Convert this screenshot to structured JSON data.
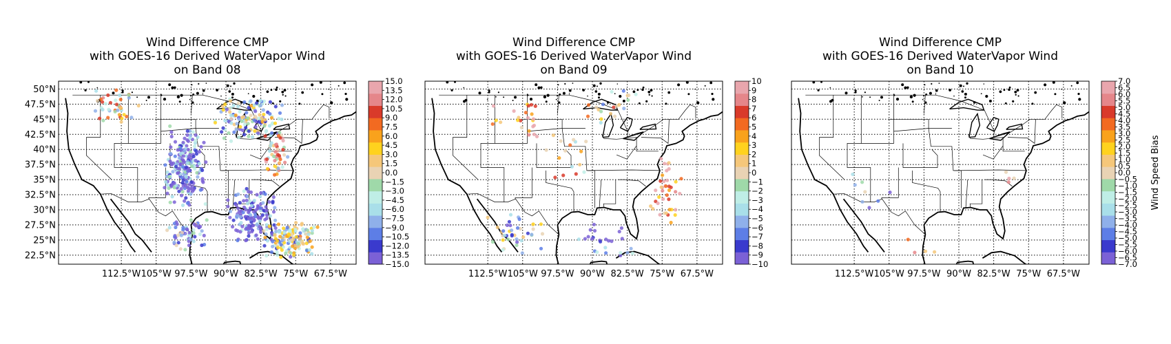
{
  "chart_data": [
    {
      "type": "scatter",
      "title_lines": [
        "Wind Difference CMP",
        "with GOES-16 Derived WaterVapor Wind",
        "on Band 08"
      ],
      "x_ticks": [
        "112.5°W",
        "105°W",
        "97.5°W",
        "90°W",
        "82.5°W",
        "75°W",
        "67.5°W"
      ],
      "x_tick_values": [
        -112.5,
        -105,
        -97.5,
        -90,
        -82.5,
        -75,
        -67.5
      ],
      "y_ticks": [
        "50°N",
        "47.5°N",
        "45°N",
        "42.5°N",
        "40°N",
        "37.5°N",
        "35°N",
        "32.5°N",
        "30°N",
        "27.5°N",
        "25°N",
        "22.5°N"
      ],
      "y_tick_values": [
        50,
        47.5,
        45,
        42.5,
        40,
        37.5,
        35,
        32.5,
        30,
        27.5,
        25,
        22.5
      ],
      "xlim": [
        -126,
        -62
      ],
      "ylim": [
        21,
        51.3
      ],
      "grid": true,
      "colorbar": {
        "min": -15,
        "max": 15,
        "labels": [
          "15.0",
          "13.5",
          "12.0",
          "10.5",
          "9.0",
          "7.5",
          "6.0",
          "4.5",
          "3.0",
          "1.5",
          "0.0",
          "−1.5",
          "−3.0",
          "−4.5",
          "−6.0",
          "−7.5",
          "−9.0",
          "−10.5",
          "−12.0",
          "−13.5",
          "−15.0"
        ],
        "title": ""
      },
      "density": "high"
    },
    {
      "type": "scatter",
      "title_lines": [
        "Wind Difference CMP",
        "with GOES-16 Derived WaterVapor Wind",
        "on Band 09"
      ],
      "x_ticks": [
        "112.5°W",
        "105°W",
        "97.5°W",
        "90°W",
        "82.5°W",
        "75°W",
        "67.5°W"
      ],
      "x_tick_values": [
        -112.5,
        -105,
        -97.5,
        -90,
        -82.5,
        -75,
        -67.5
      ],
      "y_ticks": [],
      "y_tick_values": [],
      "xlim": [
        -126,
        -62
      ],
      "ylim": [
        21,
        51.3
      ],
      "grid": true,
      "colorbar": {
        "min": -10,
        "max": 10,
        "labels": [
          "10",
          "9",
          "8",
          "7",
          "6",
          "5",
          "4",
          "3",
          "2",
          "1",
          "0",
          "−1",
          "−2",
          "−3",
          "−4",
          "−5",
          "−6",
          "−7",
          "−8",
          "−9",
          "−10"
        ],
        "title": ""
      },
      "density": "medium"
    },
    {
      "type": "scatter",
      "title_lines": [
        "Wind Difference CMP",
        "with GOES-16 Derived WaterVapor Wind",
        "on Band 10"
      ],
      "x_ticks": [
        "112.5°W",
        "105°W",
        "97.5°W",
        "90°W",
        "82.5°W",
        "75°W",
        "67.5°W"
      ],
      "x_tick_values": [
        -112.5,
        -105,
        -97.5,
        -90,
        -82.5,
        -75,
        -67.5
      ],
      "y_ticks": [],
      "y_tick_values": [],
      "xlim": [
        -126,
        -62
      ],
      "ylim": [
        21,
        51.3
      ],
      "grid": true,
      "colorbar": {
        "min": -7,
        "max": 7,
        "labels": [
          "7.0",
          "6.5",
          "6.0",
          "5.5",
          "5.0",
          "4.5",
          "4.0",
          "3.5",
          "3.0",
          "2.5",
          "2.0",
          "1.5",
          "1.0",
          "0.5",
          "0.0",
          "−0.5",
          "−1.0",
          "−1.5",
          "−2.0",
          "−2.5",
          "−3.0",
          "−3.5",
          "−4.0",
          "−4.5",
          "−5.0",
          "−5.5",
          "−6.0",
          "−6.5",
          "−7.0"
        ],
        "title": "Wind Speed Bias"
      },
      "density": "low"
    }
  ],
  "colormap": [
    "#7b61d6",
    "#3a3acd",
    "#5d7ee6",
    "#8fb0ea",
    "#a9dfe9",
    "#bfeee6",
    "#9fd9a9",
    "#e9d3b4",
    "#f5c77a",
    "#ffd21e",
    "#f9a21c",
    "#f26a21",
    "#d93a2a",
    "#e5868a",
    "#e9a6ad"
  ]
}
